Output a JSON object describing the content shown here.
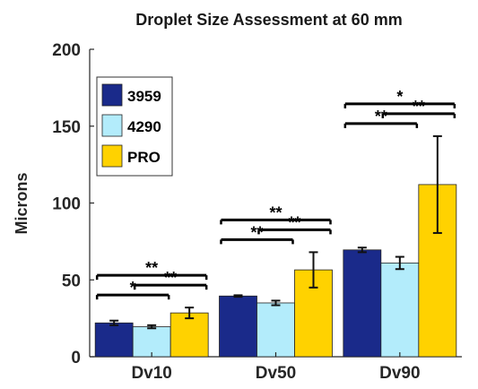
{
  "chart_data": {
    "type": "bar",
    "title": "Droplet Size Assessment at 60 mm",
    "ylabel": "Microns",
    "xlabel": "",
    "ylim": [
      0,
      200
    ],
    "yticks": [
      "0",
      "50",
      "100",
      "150",
      "200"
    ],
    "categories": [
      "Dv10",
      "Dv50",
      "Dv90"
    ],
    "legend_position": "top-left",
    "grid": false,
    "series": [
      {
        "name": "3959",
        "color": "#1a2a8a",
        "values": [
          22,
          39.5,
          69.5
        ],
        "errors": [
          1.5,
          0.5,
          1.5
        ]
      },
      {
        "name": "4290",
        "color": "#b3ecfb",
        "values": [
          19.5,
          35,
          61
        ],
        "errors": [
          1,
          1.5,
          4
        ]
      },
      {
        "name": "PRO",
        "color": "#ffd200",
        "values": [
          28.5,
          56.5,
          112
        ],
        "errors": [
          3.5,
          11.5,
          31.5
        ]
      }
    ],
    "significance": [
      {
        "category": 0,
        "from": 0,
        "to": 1,
        "label": "*"
      },
      {
        "category": 0,
        "from": 0,
        "to": 2,
        "label": "**"
      },
      {
        "category": 0,
        "from": 1,
        "to": 2,
        "label": "**"
      },
      {
        "category": 1,
        "from": 0,
        "to": 1,
        "label": "**"
      },
      {
        "category": 1,
        "from": 0,
        "to": 2,
        "label": "**"
      },
      {
        "category": 1,
        "from": 1,
        "to": 2,
        "label": "**"
      },
      {
        "category": 2,
        "from": 0,
        "to": 1,
        "label": "**"
      },
      {
        "category": 2,
        "from": 0,
        "to": 2,
        "label": "*"
      },
      {
        "category": 2,
        "from": 1,
        "to": 2,
        "label": "**"
      }
    ]
  }
}
